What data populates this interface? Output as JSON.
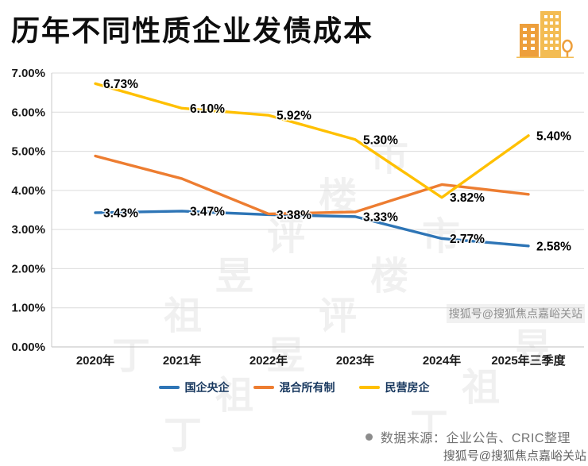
{
  "header": {
    "title": "历年不同性质企业发债成本",
    "icon": "building-icon"
  },
  "chart_data": {
    "type": "line",
    "title": "历年不同性质企业发债成本",
    "categories": [
      "2020年",
      "2021年",
      "2022年",
      "2023年",
      "2024年",
      "2025年三季度"
    ],
    "series": [
      {
        "name": "国企央企",
        "color": "#2E75B6",
        "values": [
          3.43,
          3.47,
          3.38,
          3.33,
          2.77,
          2.58
        ],
        "labels": [
          "3.43%",
          "3.47%",
          "3.38%",
          "3.33%",
          "2.77%",
          "2.58%"
        ]
      },
      {
        "name": "混合所有制",
        "color": "#ED7D31",
        "values": [
          4.88,
          4.3,
          3.4,
          3.45,
          4.15,
          3.9
        ],
        "labels": null
      },
      {
        "name": "民营房企",
        "color": "#FFC000",
        "values": [
          6.73,
          6.1,
          5.92,
          5.3,
          3.82,
          5.4
        ],
        "labels": [
          "6.73%",
          "6.10%",
          "5.92%",
          "5.30%",
          "3.82%",
          "5.40%"
        ]
      }
    ],
    "ylim": [
      0,
      7
    ],
    "ytick_step": 1,
    "ytick_labels": [
      "0.00%",
      "1.00%",
      "2.00%",
      "3.00%",
      "4.00%",
      "5.00%",
      "6.00%",
      "7.00%"
    ],
    "xlabel": "",
    "ylabel": "",
    "grid": true,
    "legend_position": "bottom"
  },
  "footer": {
    "source_text": "数据来源：企业公告、CRIC整理"
  },
  "watermarks": {
    "background_text": "丁祖昱评楼市",
    "sohu_mid": "搜狐号@搜狐焦点嘉峪关站",
    "sohu_bottom": "搜狐号@搜狐焦点嘉峪关站"
  }
}
